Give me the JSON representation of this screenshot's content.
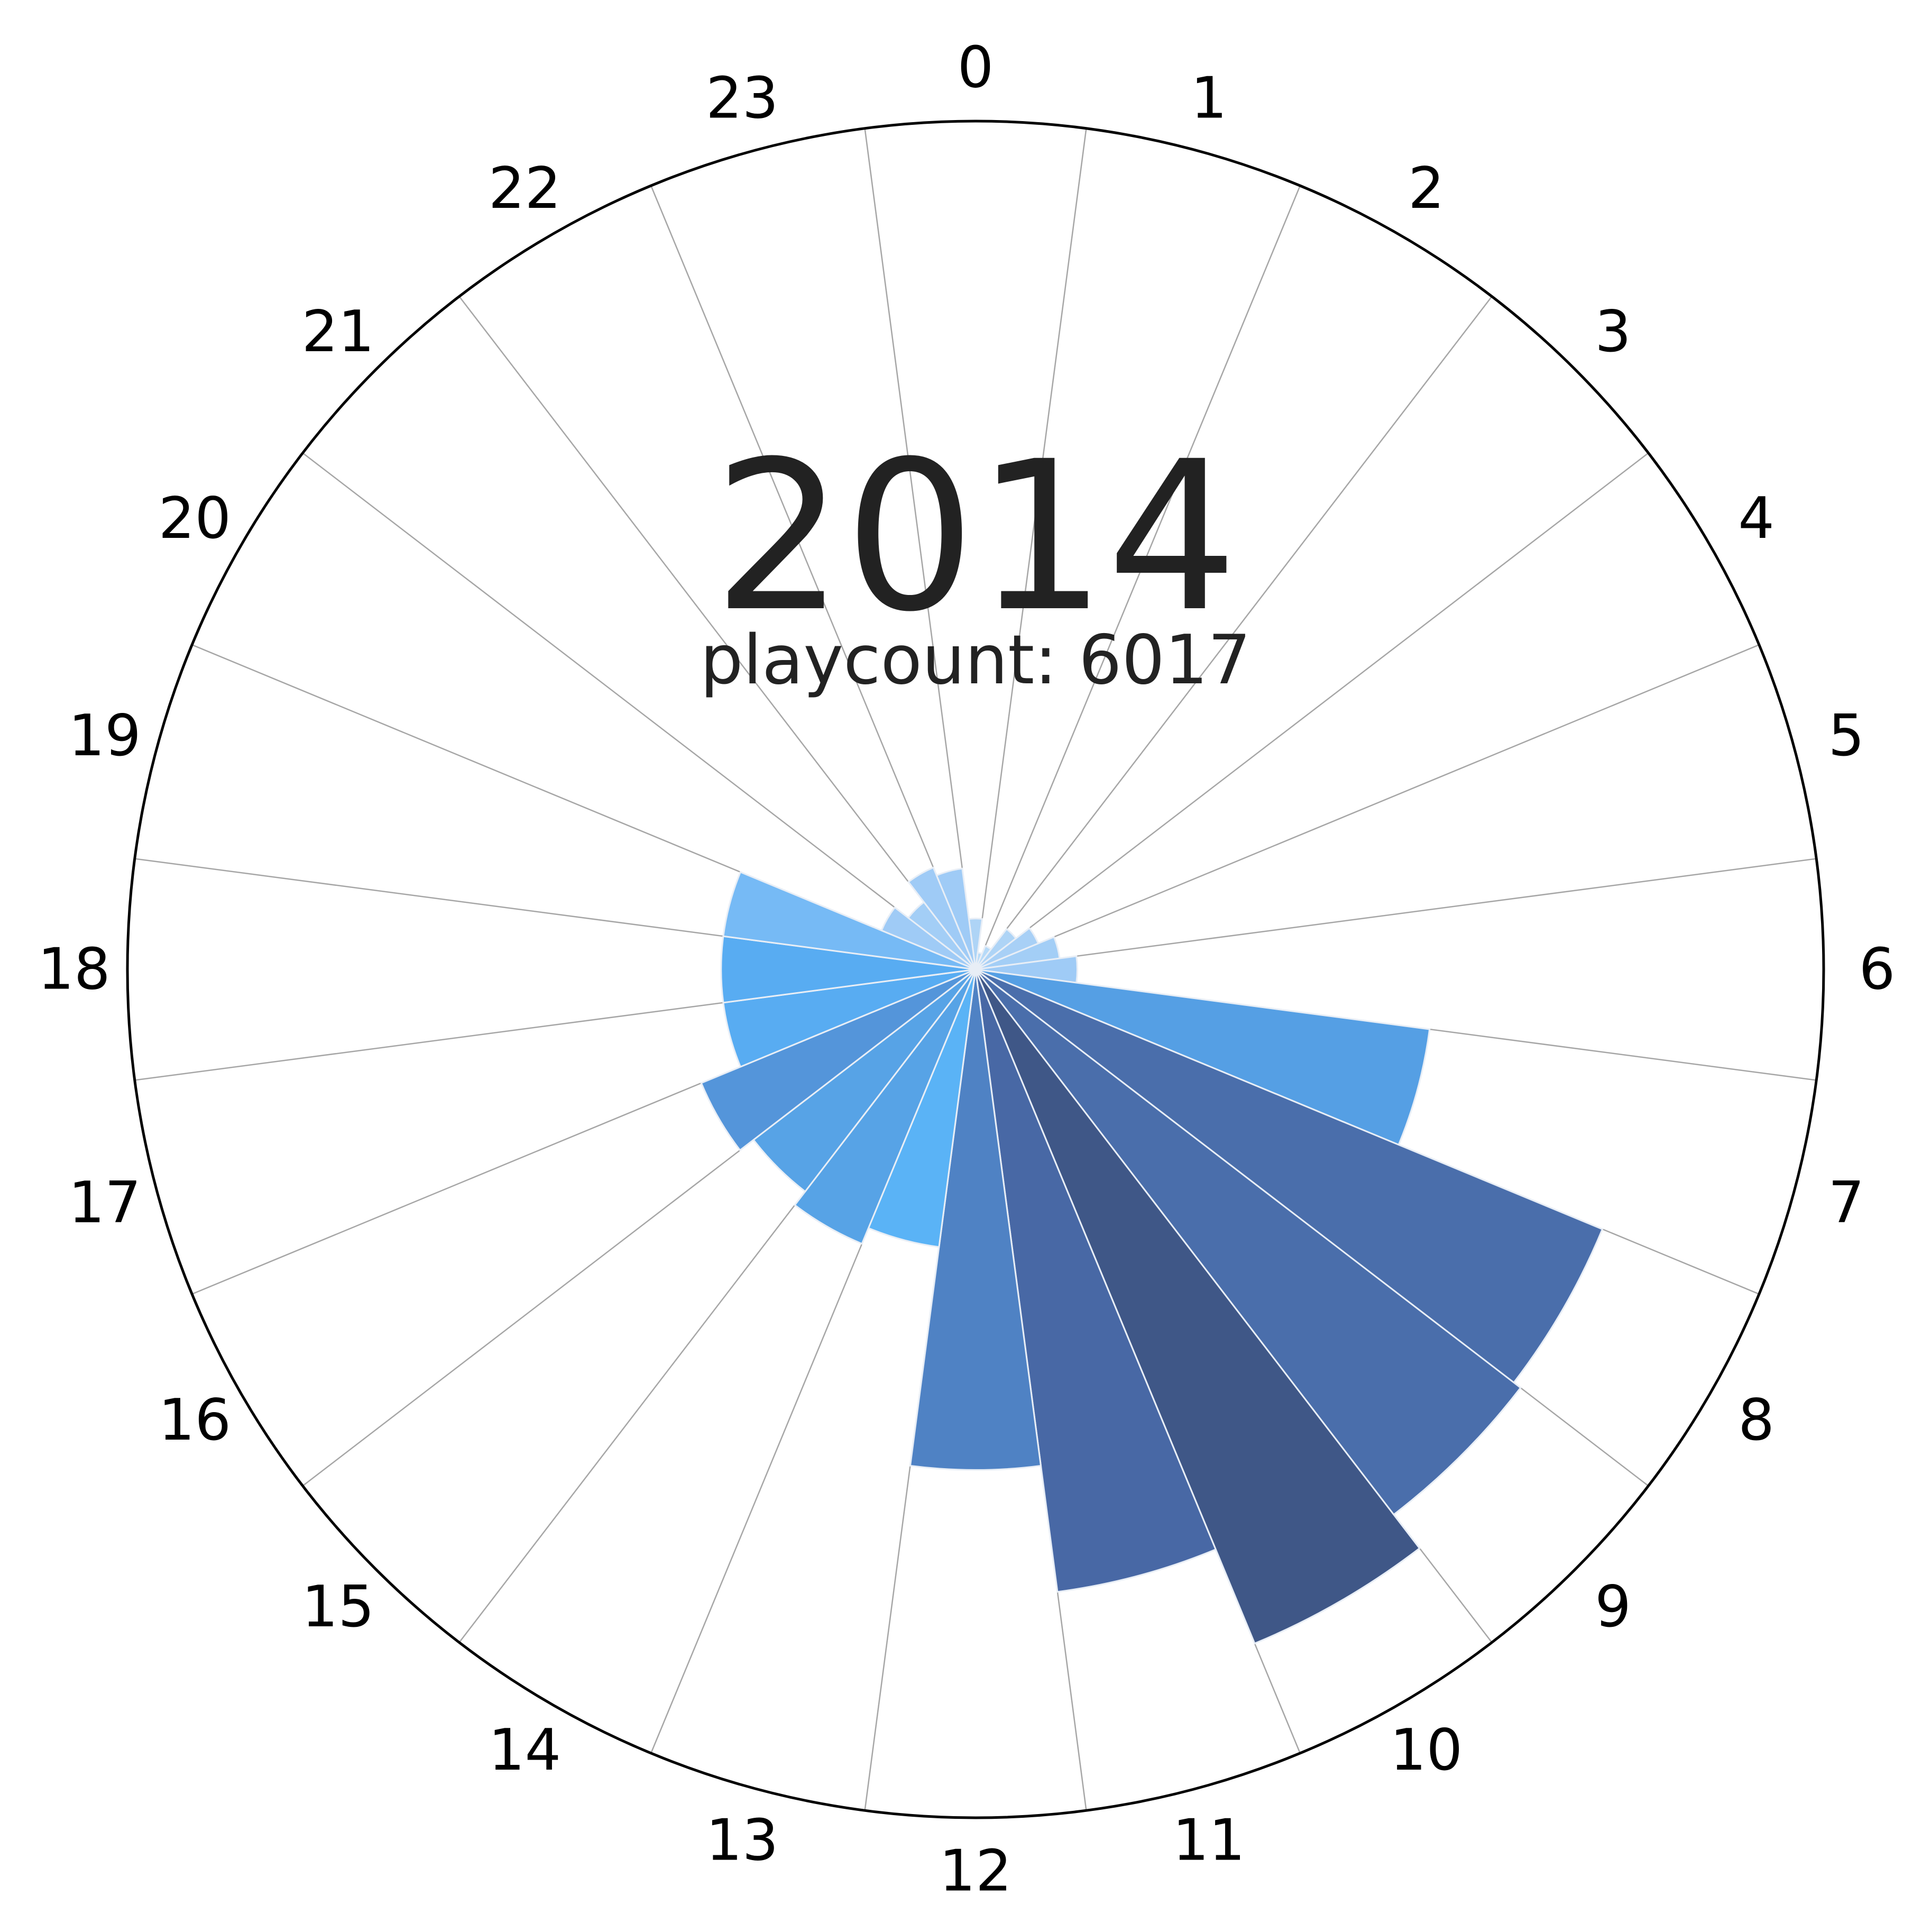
{
  "chart_data": {
    "type": "bar",
    "projection": "polar",
    "direction": "clockwise",
    "zero_location": "top",
    "categories": [
      "0",
      "1",
      "2",
      "3",
      "4",
      "5",
      "6",
      "7",
      "8",
      "9",
      "10",
      "11",
      "12",
      "13",
      "14",
      "15",
      "16",
      "17",
      "18",
      "19",
      "20",
      "21",
      "22",
      "23"
    ],
    "values": [
      6,
      2,
      3,
      6,
      8,
      10,
      12,
      54,
      80,
      81,
      86,
      74,
      59,
      33,
      35,
      33,
      35,
      30,
      30,
      30,
      12,
      10,
      13,
      12
    ],
    "rlim": [
      0,
      100
    ],
    "colors": [
      "#aed4f6",
      "#b6daf8",
      "#b6daf8",
      "#aed4f6",
      "#a8d0f6",
      "#a3cef6",
      "#9fcbf6",
      "#559fe4",
      "#4a6eab",
      "#4a6eab",
      "#3f5787",
      "#4868a5",
      "#4f82c4",
      "#5ab3f6",
      "#57a3e6",
      "#57a3e6",
      "#5495da",
      "#58acf2",
      "#58acf2",
      "#76baf5",
      "#9fcbf6",
      "#a3cef6",
      "#9fcbf6",
      "#9fcbf6"
    ],
    "title": "2014",
    "subtitle": "playcount: 6017",
    "grid": true
  }
}
